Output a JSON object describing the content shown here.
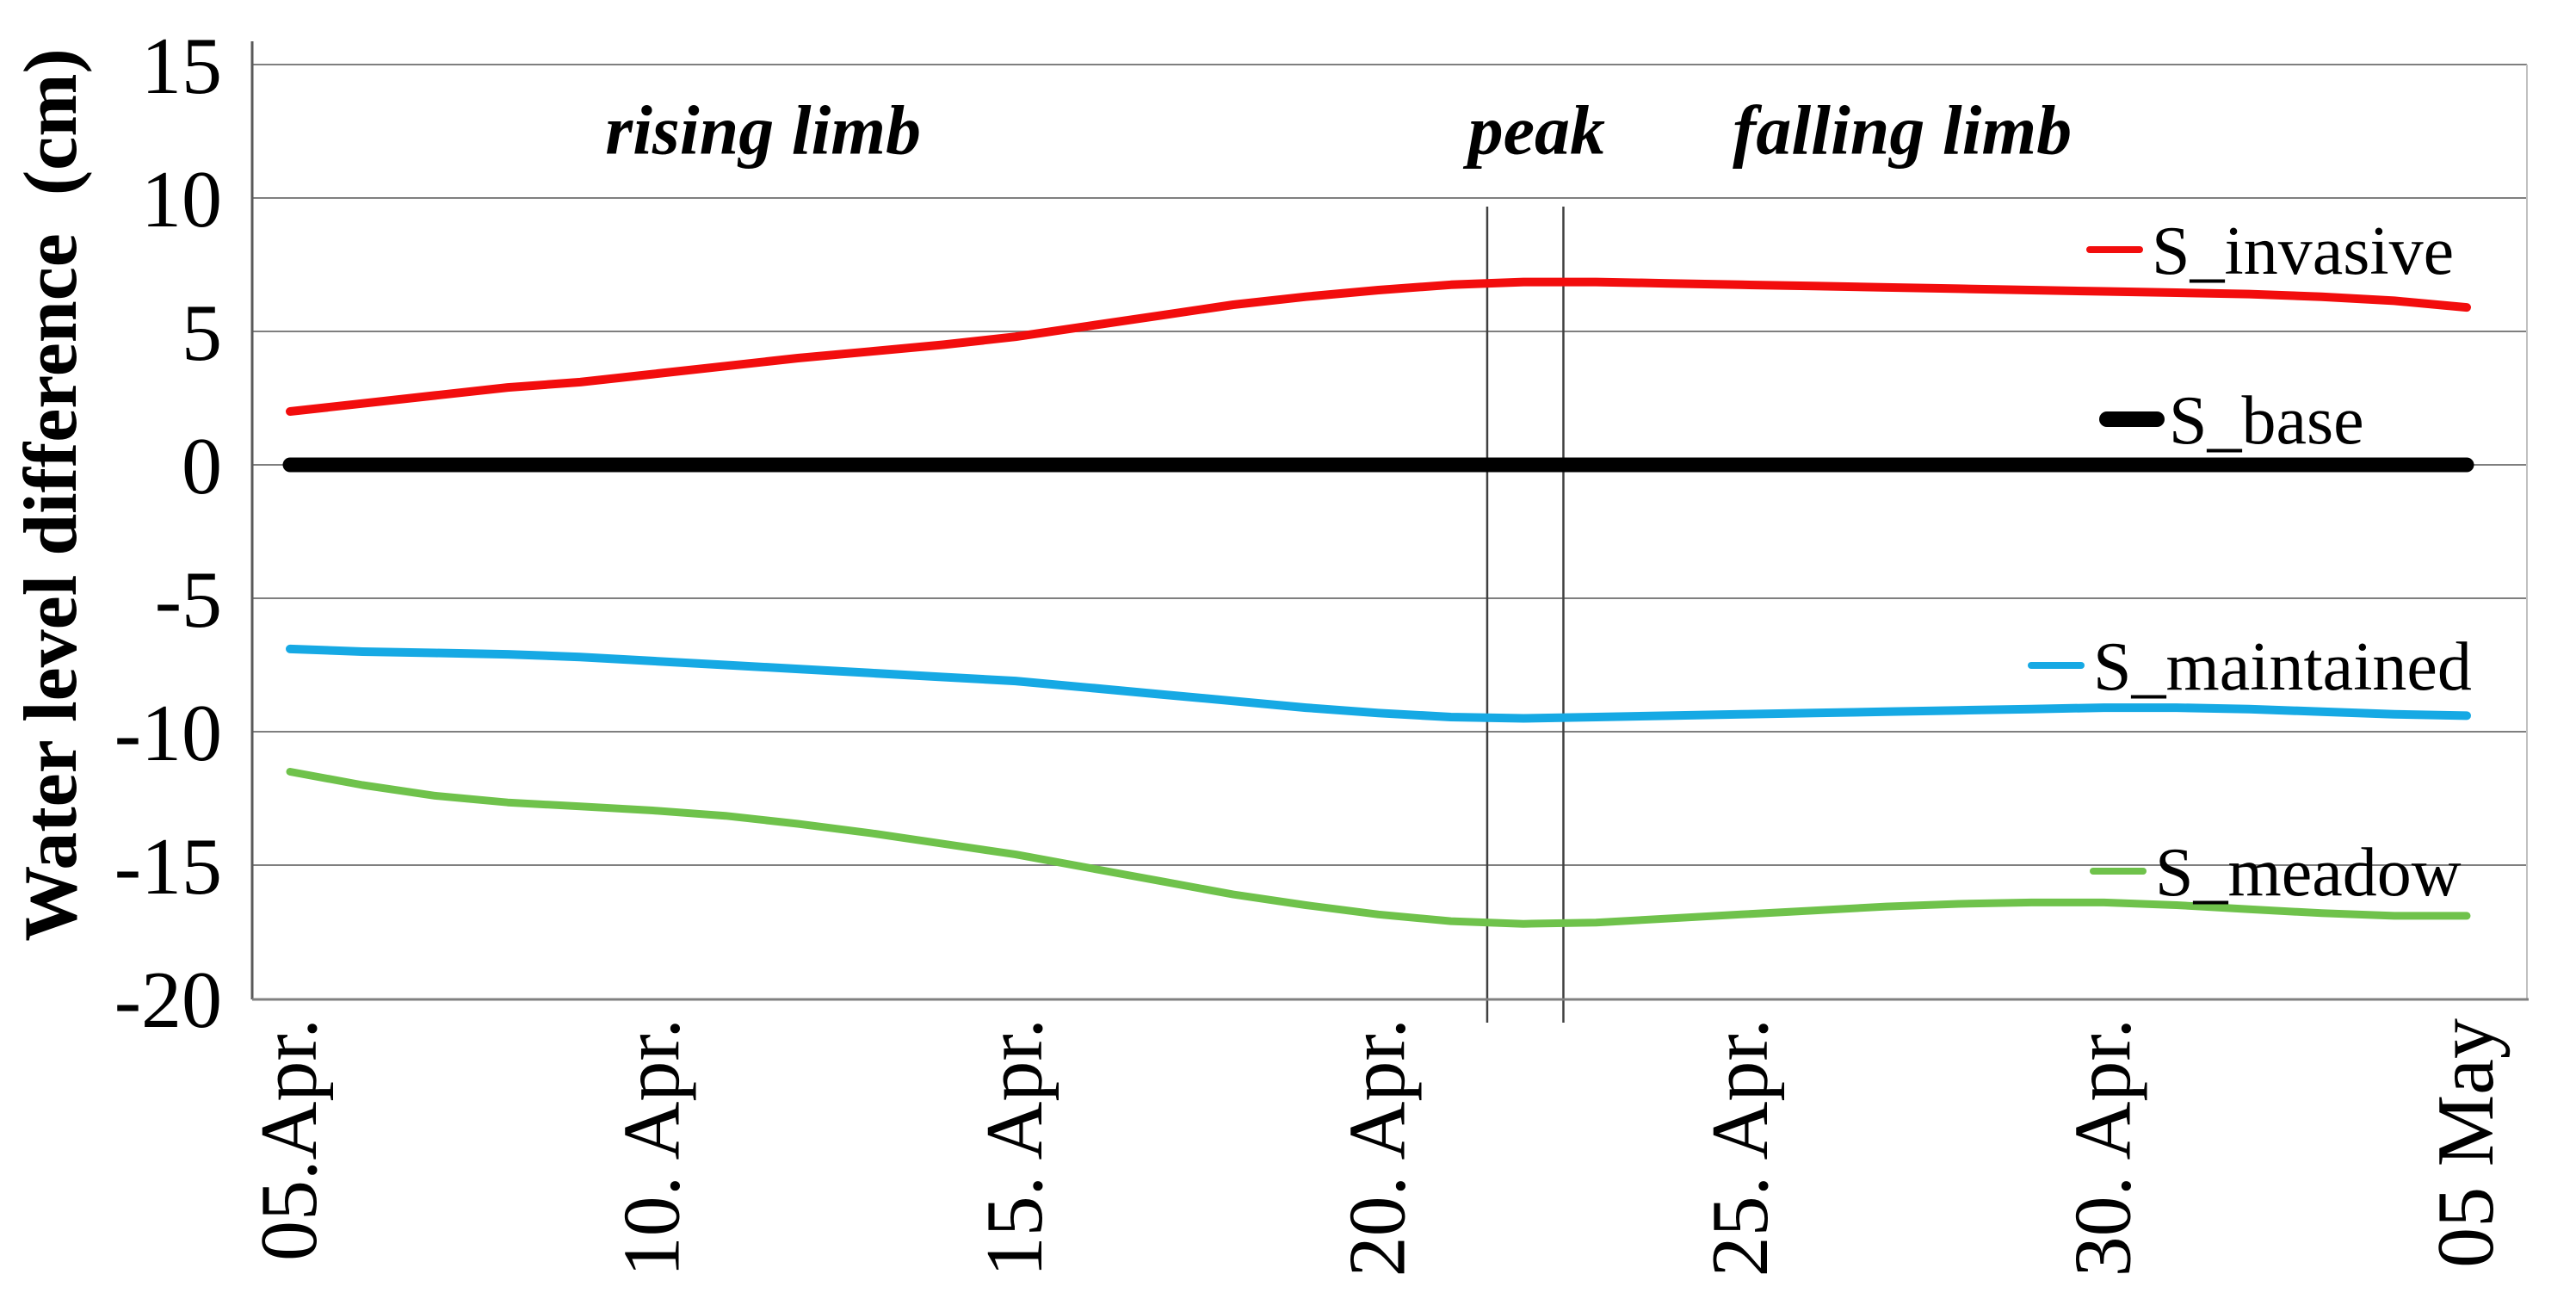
{
  "chart_data": {
    "type": "line",
    "title": "",
    "ylabel": "Water level difference  (cm)",
    "xlabel": "",
    "ylim": [
      -20,
      15
    ],
    "yticks": [
      15,
      10,
      5,
      0,
      -5,
      -10,
      -15,
      -20
    ],
    "ytick_labels": [
      "15",
      "10",
      "5",
      "0",
      "-5",
      "-10",
      "-15",
      "-20"
    ],
    "grid": "horizontal-on",
    "x_unit": "days since 05 April",
    "x_range_days": [
      0,
      30
    ],
    "xtick_days": [
      0,
      5,
      10,
      15,
      20,
      25,
      30
    ],
    "xtick_labels": [
      "05.Apr.",
      "10. Apr.",
      "15. Apr.",
      "20. Apr.",
      "25. Apr.",
      "30. Apr.",
      "05 May"
    ],
    "annotations": [
      {
        "text": "rising limb",
        "day": 6.52,
        "value": 12.6
      },
      {
        "text": "peak",
        "day": 17.18,
        "value": 12.6
      },
      {
        "text": "falling limb",
        "day": 22.22,
        "value": 12.6
      }
    ],
    "peak_boundary_lines_days": [
      16.5,
      17.55
    ],
    "series": [
      {
        "name": "S_invasive",
        "color": "#f20d0d",
        "width": 10,
        "values": [
          2.0,
          2.3,
          2.6,
          2.9,
          3.1,
          3.4,
          3.7,
          4.0,
          4.25,
          4.5,
          4.8,
          5.2,
          5.6,
          6.0,
          6.3,
          6.55,
          6.75,
          6.85,
          6.85,
          6.8,
          6.75,
          6.7,
          6.65,
          6.6,
          6.55,
          6.5,
          6.45,
          6.4,
          6.3,
          6.15,
          5.9
        ]
      },
      {
        "name": "S_base",
        "color": "#000000",
        "width": 17,
        "values": [
          0,
          0,
          0,
          0,
          0,
          0,
          0,
          0,
          0,
          0,
          0,
          0,
          0,
          0,
          0,
          0,
          0,
          0,
          0,
          0,
          0,
          0,
          0,
          0,
          0,
          0,
          0,
          0,
          0,
          0,
          0
        ]
      },
      {
        "name": "S_maintained",
        "color": "#16a9e4",
        "width": 10,
        "values": [
          -6.9,
          -7.0,
          -7.05,
          -7.1,
          -7.2,
          -7.35,
          -7.5,
          -7.65,
          -7.8,
          -7.95,
          -8.1,
          -8.35,
          -8.6,
          -8.85,
          -9.1,
          -9.3,
          -9.45,
          -9.5,
          -9.45,
          -9.4,
          -9.35,
          -9.3,
          -9.25,
          -9.2,
          -9.15,
          -9.1,
          -9.1,
          -9.15,
          -9.25,
          -9.35,
          -9.4
        ]
      },
      {
        "name": "S_meadow",
        "color": "#6fc24b",
        "width": 9,
        "values": [
          -11.5,
          -12.0,
          -12.4,
          -12.65,
          -12.8,
          -12.95,
          -13.15,
          -13.45,
          -13.8,
          -14.2,
          -14.6,
          -15.1,
          -15.6,
          -16.1,
          -16.5,
          -16.85,
          -17.1,
          -17.2,
          -17.15,
          -17.0,
          -16.85,
          -16.7,
          -16.55,
          -16.45,
          -16.4,
          -16.4,
          -16.5,
          -16.65,
          -16.8,
          -16.9,
          -16.9
        ]
      }
    ],
    "legend_position": "inside-right",
    "legend": [
      {
        "label": "S_invasive",
        "color": "#f20d0d",
        "marker_thickness": 8
      },
      {
        "label": "S_base",
        "color": "#000000",
        "marker_thickness": 18
      },
      {
        "label": "S_maintained",
        "color": "#16a9e4",
        "marker_thickness": 8
      },
      {
        "label": "S_meadow",
        "color": "#6fc24b",
        "marker_thickness": 8
      }
    ],
    "colors": {
      "grid": "#7f7f7f",
      "y_axis_line": "#595959",
      "x_axis_line": "#808080",
      "right_border": "#c0c0c0",
      "peak_boundary_line": "#404040",
      "text": "#000000"
    }
  }
}
